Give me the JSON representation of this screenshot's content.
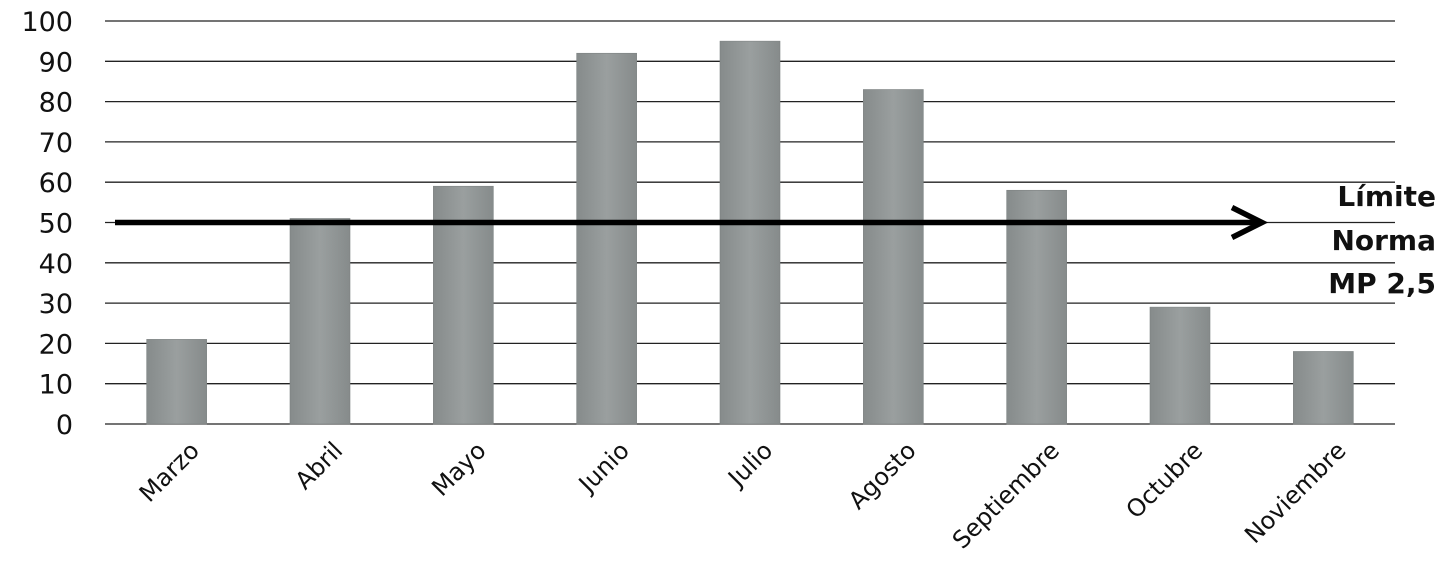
{
  "chart_data": {
    "type": "bar",
    "title": "",
    "xlabel": "",
    "ylabel": "",
    "categories": [
      "Marzo",
      "Abril",
      "Mayo",
      "Junio",
      "Julio",
      "Agosto",
      "Septiembre",
      "Octubre",
      "Noviembre"
    ],
    "series": [
      {
        "values": [
          21,
          51,
          59,
          92,
          95,
          83,
          58,
          29,
          18
        ]
      }
    ],
    "ylim": [
      0,
      100
    ],
    "yticks": [
      0,
      10,
      20,
      30,
      40,
      50,
      60,
      70,
      80,
      90,
      100
    ],
    "grid": true,
    "bar_color": "#8f9494",
    "reference_line": {
      "value": 50,
      "color": "#000000",
      "label_lines": [
        "Límite",
        "Norma",
        "MP 2,5"
      ]
    }
  }
}
